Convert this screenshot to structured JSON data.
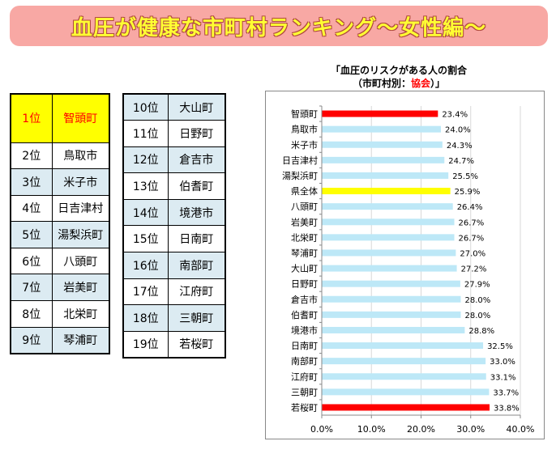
{
  "banner": {
    "title": "血圧が健康な市町村ランキング〜女性編〜"
  },
  "chart_title": {
    "line1": "「血圧のリスクがある人の割合",
    "line2_pre": "（市町村別：",
    "line2_highlight": "協会",
    "line2_post": "）」"
  },
  "ranking_left": [
    {
      "rank": "1位",
      "name": "智頭町",
      "highlight": "yellow"
    },
    {
      "rank": "2位",
      "name": "鳥取市",
      "highlight": "white"
    },
    {
      "rank": "3位",
      "name": "米子市",
      "highlight": "blue"
    },
    {
      "rank": "4位",
      "name": "日吉津村",
      "highlight": "white"
    },
    {
      "rank": "5位",
      "name": "湯梨浜町",
      "highlight": "blue"
    },
    {
      "rank": "6位",
      "name": "八頭町",
      "highlight": "white"
    },
    {
      "rank": "7位",
      "name": "岩美町",
      "highlight": "blue"
    },
    {
      "rank": "8位",
      "name": "北栄町",
      "highlight": "white"
    },
    {
      "rank": "9位",
      "name": "琴浦町",
      "highlight": "blue"
    }
  ],
  "ranking_right": [
    {
      "rank": "10位",
      "name": "大山町",
      "highlight": "blue"
    },
    {
      "rank": "11位",
      "name": "日野町",
      "highlight": "white"
    },
    {
      "rank": "12位",
      "name": "倉吉市",
      "highlight": "blue"
    },
    {
      "rank": "13位",
      "name": "伯耆町",
      "highlight": "white"
    },
    {
      "rank": "14位",
      "name": "境港市",
      "highlight": "blue"
    },
    {
      "rank": "15位",
      "name": "日南町",
      "highlight": "white"
    },
    {
      "rank": "16位",
      "name": "南部町",
      "highlight": "blue"
    },
    {
      "rank": "17位",
      "name": "江府町",
      "highlight": "white"
    },
    {
      "rank": "18位",
      "name": "三朝町",
      "highlight": "blue"
    },
    {
      "rank": "19位",
      "name": "若桜町",
      "highlight": "white"
    }
  ],
  "colors": {
    "banner_bg": "#f8a8a4",
    "banner_text": "#ffff33",
    "row_blue": "#dcebf2",
    "row_yellow": "#ffff00",
    "bar_default": "#bde8f7",
    "bar_red": "#ff0000",
    "bar_yellow": "#ffff00"
  },
  "chart_data": {
    "type": "bar",
    "orientation": "horizontal",
    "categories": [
      "智頭町",
      "鳥取市",
      "米子市",
      "日吉津村",
      "湯梨浜町",
      "県全体",
      "八頭町",
      "岩美町",
      "北栄町",
      "琴浦町",
      "大山町",
      "日野町",
      "倉吉市",
      "伯耆町",
      "境港市",
      "日南町",
      "南部町",
      "江府町",
      "三朝町",
      "若桜町"
    ],
    "values": [
      23.4,
      24.0,
      24.3,
      24.7,
      25.5,
      25.9,
      26.4,
      26.7,
      26.7,
      27.0,
      27.2,
      27.9,
      28.0,
      28.0,
      28.8,
      32.5,
      33.0,
      33.1,
      33.7,
      33.8
    ],
    "data_labels": [
      "23.4%",
      "24.0%",
      "24.3%",
      "24.7%",
      "25.5%",
      "25.9%",
      "26.4%",
      "26.7%",
      "26.7%",
      "27.0%",
      "27.2%",
      "27.9%",
      "28.0%",
      "28.0%",
      "28.8%",
      "32.5%",
      "33.0%",
      "33.1%",
      "33.7%",
      "33.8%"
    ],
    "bar_colors": [
      "red",
      "default",
      "default",
      "default",
      "default",
      "yellow",
      "default",
      "default",
      "default",
      "default",
      "default",
      "default",
      "default",
      "default",
      "default",
      "default",
      "default",
      "default",
      "default",
      "red"
    ],
    "xlim": [
      0,
      40
    ],
    "xticks": [
      0,
      10,
      20,
      30,
      40
    ],
    "xtick_labels": [
      "0.0%",
      "10.0%",
      "20.0%",
      "30.0%",
      "40.0%"
    ],
    "grid": true,
    "legend": "none"
  }
}
